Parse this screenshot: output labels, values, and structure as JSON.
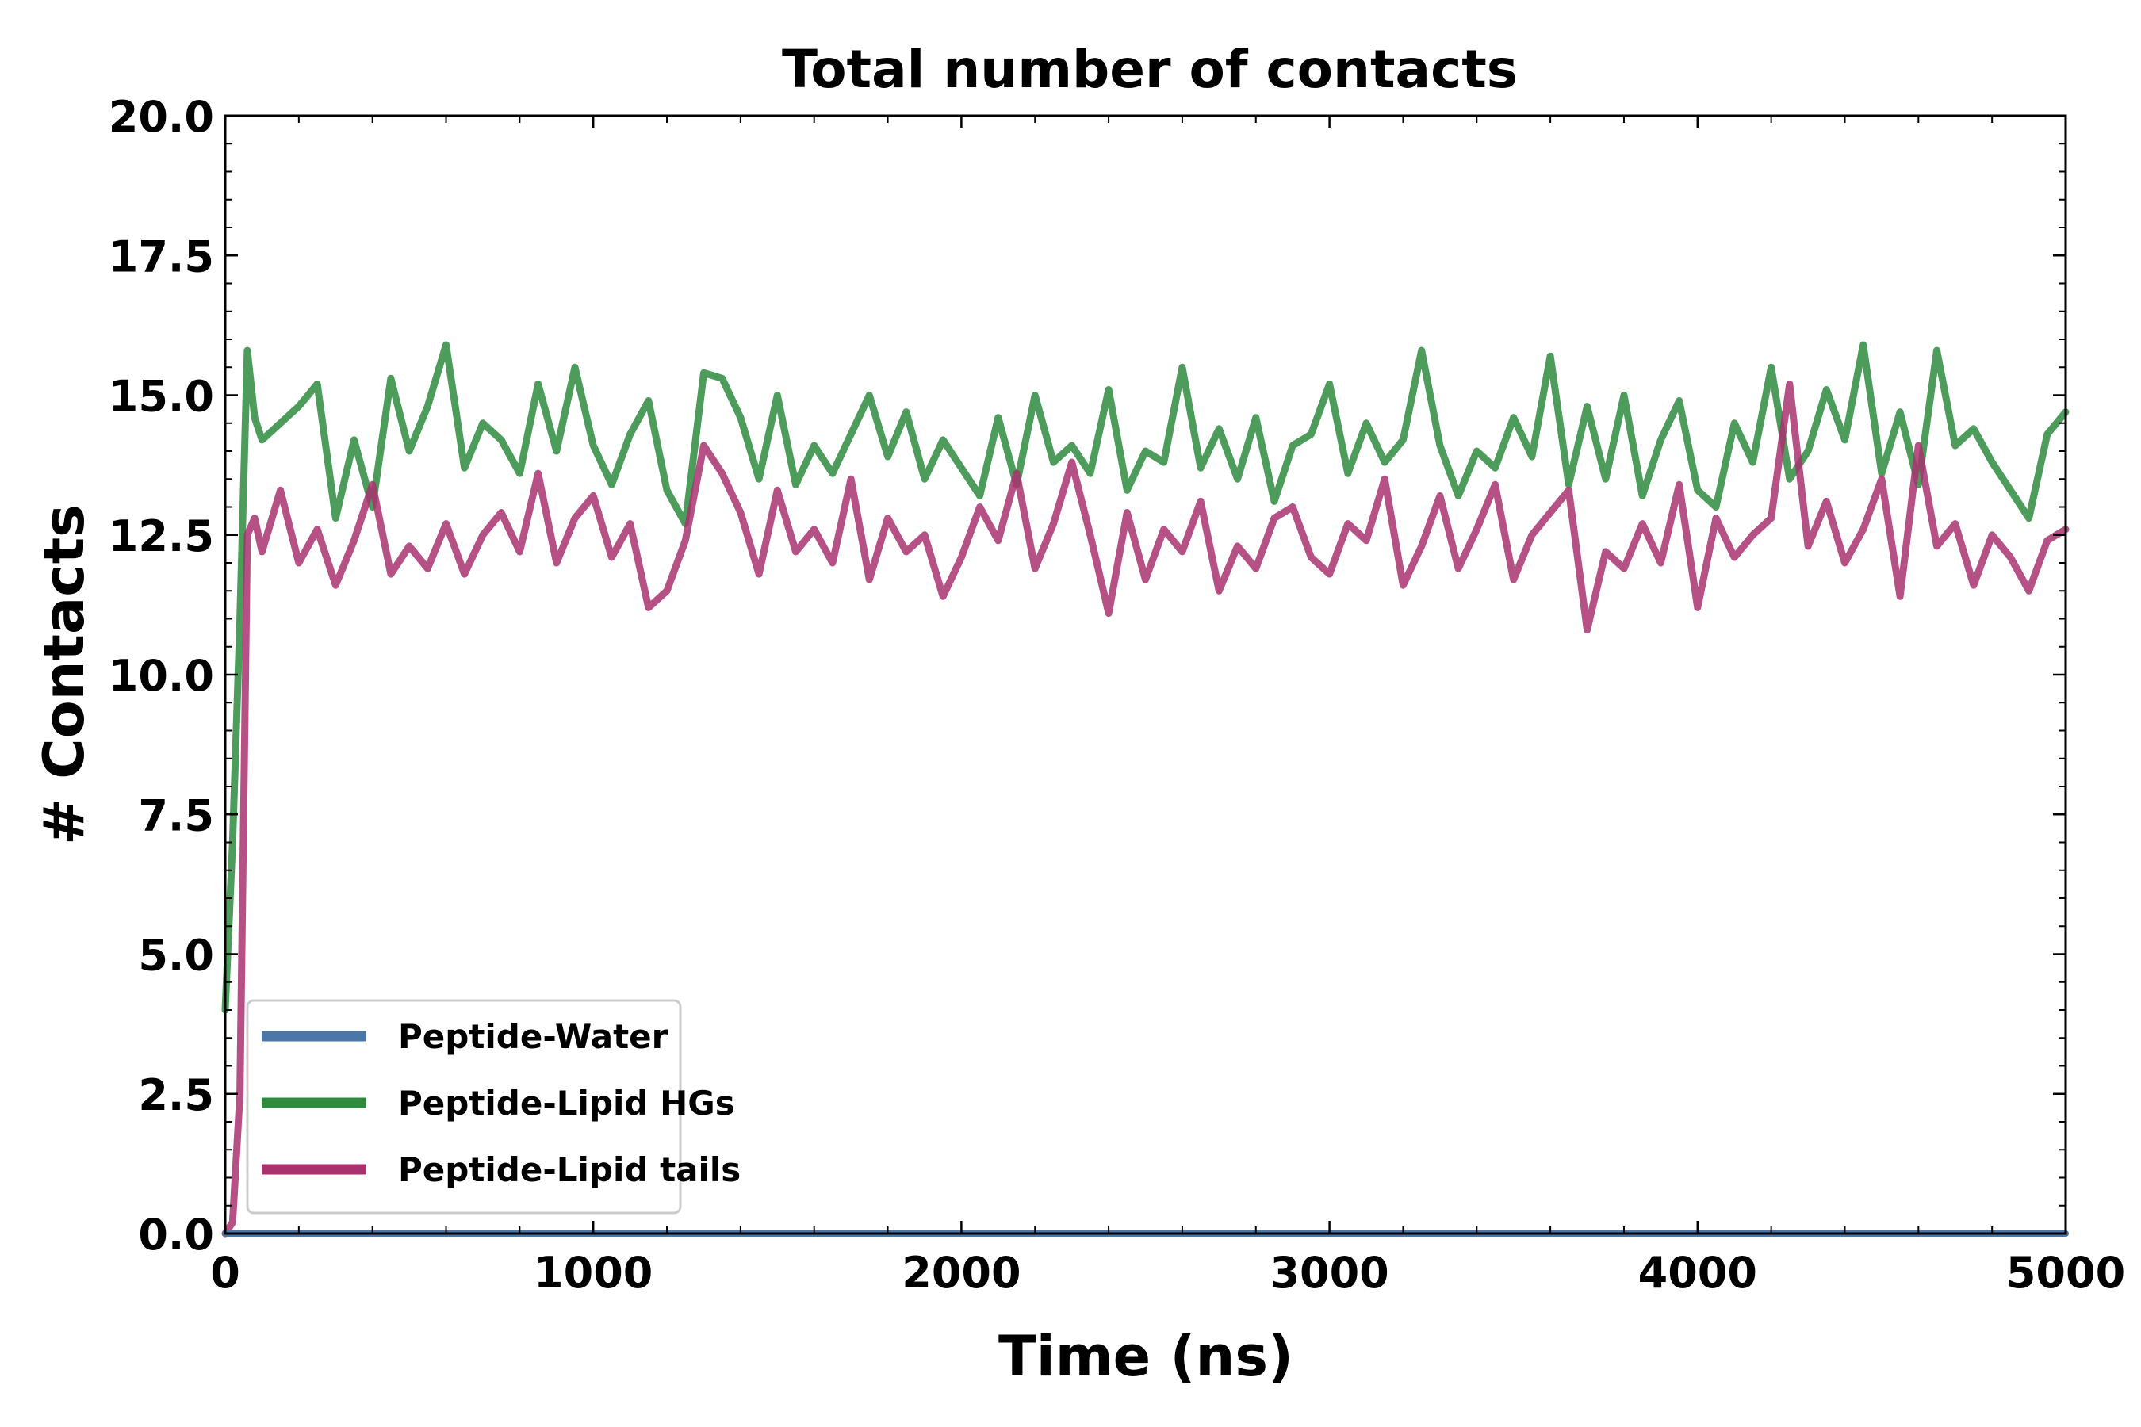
{
  "chart_data": {
    "type": "line",
    "title": "Total number of contacts",
    "xlabel": "Time (ns)",
    "ylabel": "# Contacts",
    "xlim": [
      0,
      5000
    ],
    "ylim": [
      0,
      20
    ],
    "xticks": [
      "0",
      "1000",
      "2000",
      "3000",
      "4000",
      "5000"
    ],
    "yticks": [
      "0.0",
      "2.5",
      "5.0",
      "7.5",
      "10.0",
      "12.5",
      "15.0",
      "17.5",
      "20.0"
    ],
    "legend_position": "bottom-left",
    "series": [
      {
        "name": "Peptide-Water",
        "color": "#4a76a8",
        "x": [
          0,
          5000
        ],
        "y": [
          0.0,
          0.0
        ]
      },
      {
        "name": "Peptide-Lipid HGs",
        "color": "#2e8b3e",
        "x": [
          0,
          20,
          40,
          60,
          80,
          100,
          150,
          200,
          250,
          300,
          350,
          400,
          450,
          500,
          550,
          600,
          650,
          700,
          750,
          800,
          850,
          900,
          950,
          1000,
          1050,
          1100,
          1150,
          1200,
          1250,
          1300,
          1350,
          1400,
          1450,
          1500,
          1550,
          1600,
          1650,
          1700,
          1750,
          1800,
          1850,
          1900,
          1950,
          2000,
          2050,
          2100,
          2150,
          2200,
          2250,
          2300,
          2350,
          2400,
          2450,
          2500,
          2550,
          2600,
          2650,
          2700,
          2750,
          2800,
          2850,
          2900,
          2950,
          3000,
          3050,
          3100,
          3150,
          3200,
          3250,
          3300,
          3350,
          3400,
          3450,
          3500,
          3550,
          3600,
          3650,
          3700,
          3750,
          3800,
          3850,
          3900,
          3950,
          4000,
          4050,
          4100,
          4150,
          4200,
          4250,
          4300,
          4350,
          4400,
          4450,
          4500,
          4550,
          4600,
          4650,
          4700,
          4750,
          4800,
          4850,
          4900,
          4950,
          5000
        ],
        "y": [
          4.0,
          7.0,
          11.0,
          15.8,
          14.6,
          14.2,
          14.5,
          14.8,
          15.2,
          12.8,
          14.2,
          13.0,
          15.3,
          14.0,
          14.8,
          15.9,
          13.7,
          14.5,
          14.2,
          13.6,
          15.2,
          14.0,
          15.5,
          14.1,
          13.4,
          14.3,
          14.9,
          13.3,
          12.7,
          15.4,
          15.3,
          14.6,
          13.5,
          15.0,
          13.4,
          14.1,
          13.6,
          14.3,
          15.0,
          13.9,
          14.7,
          13.5,
          14.2,
          13.7,
          13.2,
          14.6,
          13.4,
          15.0,
          13.8,
          14.1,
          13.6,
          15.1,
          13.3,
          14.0,
          13.8,
          15.5,
          13.7,
          14.4,
          13.5,
          14.6,
          13.1,
          14.1,
          14.3,
          15.2,
          13.6,
          14.5,
          13.8,
          14.2,
          15.8,
          14.1,
          13.2,
          14.0,
          13.7,
          14.6,
          13.9,
          15.7,
          13.4,
          14.8,
          13.5,
          15.0,
          13.2,
          14.2,
          14.9,
          13.3,
          13.0,
          14.5,
          13.8,
          15.5,
          13.5,
          14.0,
          15.1,
          14.2,
          15.9,
          13.6,
          14.7,
          13.4,
          15.8,
          14.1,
          14.4,
          13.8,
          13.3,
          12.8,
          14.3,
          14.7
        ]
      },
      {
        "name": "Peptide-Lipid tails",
        "color": "#a8326e",
        "x": [
          0,
          20,
          40,
          60,
          80,
          100,
          150,
          200,
          250,
          300,
          350,
          400,
          450,
          500,
          550,
          600,
          650,
          700,
          750,
          800,
          850,
          900,
          950,
          1000,
          1050,
          1100,
          1150,
          1200,
          1250,
          1300,
          1350,
          1400,
          1450,
          1500,
          1550,
          1600,
          1650,
          1700,
          1750,
          1800,
          1850,
          1900,
          1950,
          2000,
          2050,
          2100,
          2150,
          2200,
          2250,
          2300,
          2350,
          2400,
          2450,
          2500,
          2550,
          2600,
          2650,
          2700,
          2750,
          2800,
          2850,
          2900,
          2950,
          3000,
          3050,
          3100,
          3150,
          3200,
          3250,
          3300,
          3350,
          3400,
          3450,
          3500,
          3550,
          3600,
          3650,
          3700,
          3750,
          3800,
          3850,
          3900,
          3950,
          4000,
          4050,
          4100,
          4150,
          4200,
          4250,
          4300,
          4350,
          4400,
          4450,
          4500,
          4550,
          4600,
          4650,
          4700,
          4750,
          4800,
          4850,
          4900,
          4950,
          5000
        ],
        "y": [
          0.0,
          0.2,
          2.5,
          12.5,
          12.8,
          12.2,
          13.3,
          12.0,
          12.6,
          11.6,
          12.4,
          13.4,
          11.8,
          12.3,
          11.9,
          12.7,
          11.8,
          12.5,
          12.9,
          12.2,
          13.6,
          12.0,
          12.8,
          13.2,
          12.1,
          12.7,
          11.2,
          11.5,
          12.4,
          14.1,
          13.6,
          12.9,
          11.8,
          13.3,
          12.2,
          12.6,
          12.0,
          13.5,
          11.7,
          12.8,
          12.2,
          12.5,
          11.4,
          12.1,
          13.0,
          12.4,
          13.6,
          11.9,
          12.7,
          13.8,
          12.5,
          11.1,
          12.9,
          11.7,
          12.6,
          12.2,
          13.1,
          11.5,
          12.3,
          11.9,
          12.8,
          13.0,
          12.1,
          11.8,
          12.7,
          12.4,
          13.5,
          11.6,
          12.3,
          13.2,
          11.9,
          12.6,
          13.4,
          11.7,
          12.5,
          12.9,
          13.3,
          10.8,
          12.2,
          11.9,
          12.7,
          12.0,
          13.4,
          11.2,
          12.8,
          12.1,
          12.5,
          12.8,
          15.2,
          12.3,
          13.1,
          12.0,
          12.6,
          13.5,
          11.4,
          14.1,
          12.3,
          12.7,
          11.6,
          12.5,
          12.1,
          11.5,
          12.4,
          12.6
        ]
      }
    ]
  }
}
